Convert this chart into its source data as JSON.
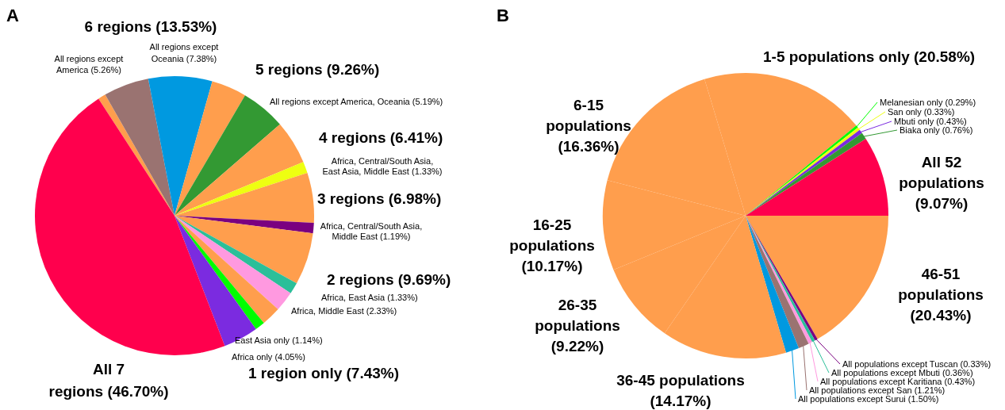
{
  "chart_data": [
    {
      "type": "pie",
      "title": "A",
      "categories": [
        null,
        "All regions except America (5.26%)",
        "All regions except Oceania (7.38%)",
        null,
        "All regions except America, Oceania (5.19%)",
        null,
        "Africa, Central/South Asia, East Asia, Middle East (1.33%)",
        null,
        "Africa, Central/South Asia, Middle East (1.19%)",
        null,
        "Africa, East Asia (1.33%)",
        "Africa, Middle East (2.33%)",
        null,
        "East Asia only (1.14%)",
        "Africa only (4.05%)",
        "All 7 regions (46.70%)"
      ],
      "values": [
        0.89,
        5.26,
        7.38,
        4.07,
        5.19,
        5.08,
        1.33,
        5.79,
        1.19,
        6.03,
        1.33,
        2.33,
        2.24,
        1.14,
        4.05,
        46.7
      ],
      "colors": [
        "#ff9e4d",
        "#9a7371",
        "#0099e0",
        "#ff9e4d",
        "#339933",
        "#ff9e4d",
        "#eeff11",
        "#ff9e4d",
        "#7a0080",
        "#ff9e4d",
        "#2bbf99",
        "#ff99e0",
        "#ff9e4d",
        "#00ff00",
        "#7b2be0",
        "#ff004d"
      ],
      "annotations": [
        "6 regions (13.53%)",
        "5 regions (9.26%)",
        "4 regions (6.41%)",
        "3 regions (6.98%)",
        "2 regions (9.69%)",
        "1 region only (7.43%)"
      ]
    },
    {
      "type": "pie",
      "title": "B",
      "categories": [
        null,
        "All populations except Tuscan (0.33%)",
        "All populations except Mbuti (0.36%)",
        "All populations except Karitiana (0.43%)",
        "All populations except San (1.21%)",
        "All populations except Surui (1.50%)",
        null,
        null,
        null,
        null,
        null,
        "Melanesian only (0.29%)",
        "San only (0.33%)",
        "Mbuti only (0.43%)",
        "Biaka only (0.76%)",
        "All 52 populations (9.07%)"
      ],
      "values": [
        16.6,
        0.33,
        0.36,
        0.43,
        1.21,
        1.5,
        14.17,
        9.22,
        10.17,
        16.36,
        18.77,
        0.29,
        0.33,
        0.43,
        0.76,
        9.07
      ],
      "colors": [
        "#ff9e4d",
        "#7a0080",
        "#2bbf99",
        "#ff99e0",
        "#9a7371",
        "#0099e0",
        "#ff9e4d",
        "#ff9e4d",
        "#ff9e4d",
        "#ff9e4d",
        "#ff9e4d",
        "#00ff00",
        "#eeff11",
        "#7b2be0",
        "#339933",
        "#ff004d"
      ],
      "annotations": [
        "1-5 populations only (20.58%)",
        "6-15 populations (16.36%)",
        "16-25 populations (10.17%)",
        "26-35 populations (9.22%)",
        "36-45 populations (14.17%)",
        "46-51 populations (20.43%)"
      ]
    }
  ]
}
